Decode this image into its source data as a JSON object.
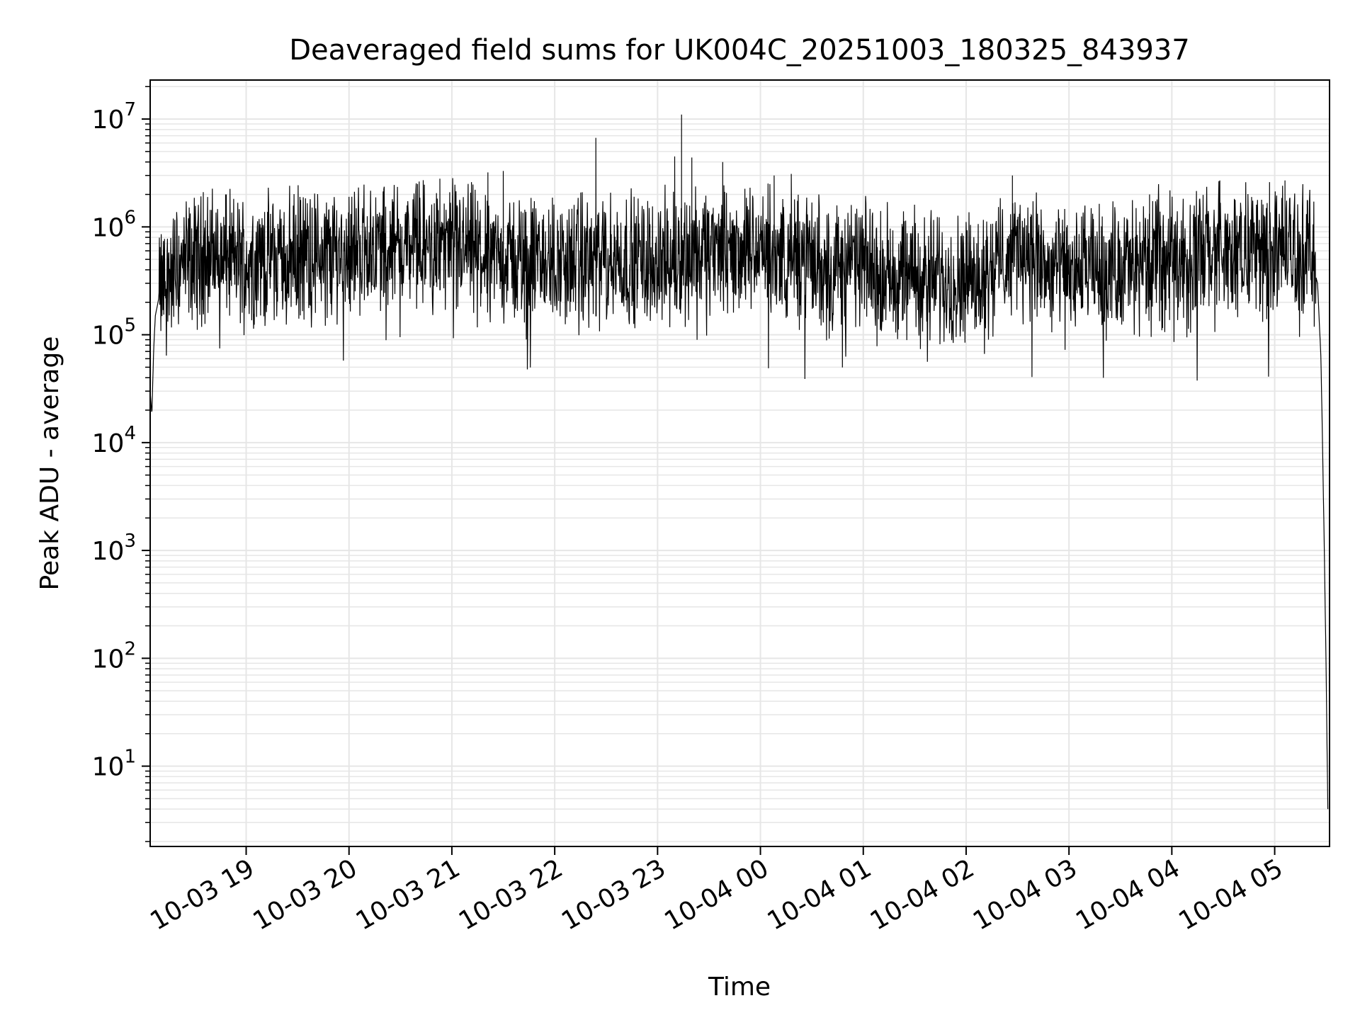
{
  "chart_data": {
    "type": "line",
    "title": "Deaveraged field sums for UK004C_20251003_180325_843937",
    "xlabel": "Time",
    "ylabel": "Peak ADU - average",
    "yscale": "log",
    "xlim": [
      "2025-10-03 18:04",
      "2025-10-04 05:32"
    ],
    "ylim": [
      1.8,
      23000000
    ],
    "grid": true,
    "line_color": "#000000",
    "grid_color": "#e6e6e6",
    "xticks": [
      {
        "value": "2025-10-03 19:00",
        "label": "10-03 19"
      },
      {
        "value": "2025-10-03 20:00",
        "label": "10-03 20"
      },
      {
        "value": "2025-10-03 21:00",
        "label": "10-03 21"
      },
      {
        "value": "2025-10-03 22:00",
        "label": "10-03 22"
      },
      {
        "value": "2025-10-03 23:00",
        "label": "10-03 23"
      },
      {
        "value": "2025-10-04 00:00",
        "label": "10-04 00"
      },
      {
        "value": "2025-10-04 01:00",
        "label": "10-04 01"
      },
      {
        "value": "2025-10-04 02:00",
        "label": "10-04 02"
      },
      {
        "value": "2025-10-04 03:00",
        "label": "10-04 03"
      },
      {
        "value": "2025-10-04 04:00",
        "label": "10-04 04"
      },
      {
        "value": "2025-10-04 05:00",
        "label": "10-04 05"
      }
    ],
    "yticks": [
      {
        "value": 10,
        "base": "10",
        "exp": "1"
      },
      {
        "value": 100,
        "base": "10",
        "exp": "2"
      },
      {
        "value": 1000,
        "base": "10",
        "exp": "3"
      },
      {
        "value": 10000,
        "base": "10",
        "exp": "4"
      },
      {
        "value": 100000,
        "base": "10",
        "exp": "5"
      },
      {
        "value": 1000000,
        "base": "10",
        "exp": "6"
      },
      {
        "value": 10000000,
        "base": "10",
        "exp": "7"
      }
    ],
    "series": [
      {
        "points": [
          [
            "2025-10-03 18:04",
            30000
          ],
          [
            "2025-10-03 18:05",
            18000
          ],
          [
            "2025-10-03 18:06",
            70000
          ],
          [
            "2025-10-03 18:07",
            150000
          ],
          [
            "2025-10-03 18:10",
            260000
          ],
          [
            "2025-10-03 18:15",
            350000
          ],
          [
            "2025-10-03 18:20",
            420000
          ],
          [
            "2025-10-03 18:30",
            480000
          ],
          [
            "2025-10-03 18:40",
            560000
          ],
          [
            "2025-10-03 18:50",
            520000
          ],
          [
            "2025-10-03 19:00",
            480000
          ],
          [
            "2025-10-03 19:30",
            560000
          ],
          [
            "2025-10-03 20:00",
            620000
          ],
          [
            "2025-10-03 20:30",
            680000
          ],
          [
            "2025-10-03 21:00",
            650000
          ],
          [
            "2025-10-03 21:30",
            520000
          ],
          [
            "2025-10-03 22:00",
            470000
          ],
          [
            "2025-10-03 22:30",
            500000
          ],
          [
            "2025-10-03 23:00",
            520000
          ],
          [
            "2025-10-03 23:30",
            580000
          ],
          [
            "2025-10-04 00:00",
            600000
          ],
          [
            "2025-10-04 00:30",
            480000
          ],
          [
            "2025-10-04 01:00",
            440000
          ],
          [
            "2025-10-04 01:30",
            360000
          ],
          [
            "2025-10-04 02:00",
            340000
          ],
          [
            "2025-10-04 02:15",
            420000
          ],
          [
            "2025-10-04 02:30",
            650000
          ],
          [
            "2025-10-04 02:45",
            420000
          ],
          [
            "2025-10-04 03:00",
            380000
          ],
          [
            "2025-10-04 03:30",
            420000
          ],
          [
            "2025-10-04 04:00",
            560000
          ],
          [
            "2025-10-04 04:30",
            600000
          ],
          [
            "2025-10-04 05:00",
            650000
          ],
          [
            "2025-10-04 05:20",
            600000
          ],
          [
            "2025-10-04 05:25",
            300000
          ],
          [
            "2025-10-04 05:27",
            60000
          ],
          [
            "2025-10-04 05:28",
            8000
          ],
          [
            "2025-10-04 05:29",
            900
          ],
          [
            "2025-10-04 05:30",
            80
          ],
          [
            "2025-10-04 05:31",
            4
          ]
        ],
        "spikes": [
          [
            "2025-10-03 18:35",
            2100000
          ],
          [
            "2025-10-03 18:48",
            2000000
          ],
          [
            "2025-10-03 20:00",
            1900000
          ],
          [
            "2025-10-03 20:40",
            2500000
          ],
          [
            "2025-10-03 20:53",
            2800000
          ],
          [
            "2025-10-03 21:21",
            3200000
          ],
          [
            "2025-10-03 21:30",
            3300000
          ],
          [
            "2025-10-03 22:24",
            6700000
          ],
          [
            "2025-10-03 23:10",
            4500000
          ],
          [
            "2025-10-03 23:14",
            11000000
          ],
          [
            "2025-10-03 23:20",
            4400000
          ],
          [
            "2025-10-03 23:38",
            4000000
          ],
          [
            "2025-10-04 00:08",
            3000000
          ],
          [
            "2025-10-04 00:18",
            3100000
          ],
          [
            "2025-10-04 02:27",
            3000000
          ],
          [
            "2025-10-04 03:47",
            2000000
          ],
          [
            "2025-10-04 04:28",
            2700000
          ],
          [
            "2025-10-04 04:57",
            2600000
          ],
          [
            "2025-10-04 05:06",
            2700000
          ]
        ]
      }
    ]
  }
}
